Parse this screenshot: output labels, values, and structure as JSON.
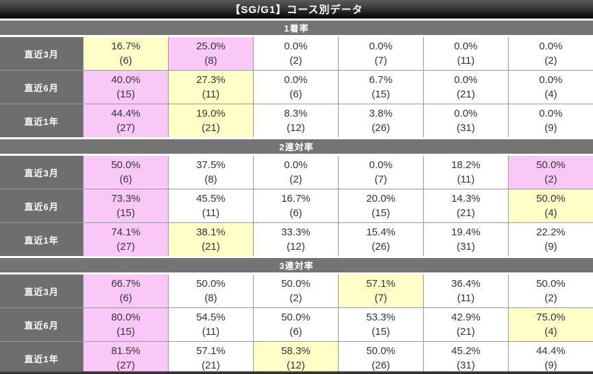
{
  "title": "【SG/G1】コース別データ",
  "colors": {
    "pink": "#f9c8f7",
    "yellow": "#ffffc8",
    "label_bg": "#6e6e6e",
    "section_bg": "#747474",
    "border": "#999999",
    "text": "#333333"
  },
  "sections": [
    {
      "title": "1着率",
      "rows": [
        {
          "label": "直近3月",
          "cells": [
            {
              "pct": "16.7%",
              "n": "(6)",
              "hl": "yellow"
            },
            {
              "pct": "25.0%",
              "n": "(8)",
              "hl": "pink"
            },
            {
              "pct": "0.0%",
              "n": "(2)",
              "hl": "none"
            },
            {
              "pct": "0.0%",
              "n": "(7)",
              "hl": "none"
            },
            {
              "pct": "0.0%",
              "n": "(11)",
              "hl": "none"
            },
            {
              "pct": "0.0%",
              "n": "(2)",
              "hl": "none"
            }
          ]
        },
        {
          "label": "直近6月",
          "cells": [
            {
              "pct": "40.0%",
              "n": "(15)",
              "hl": "pink"
            },
            {
              "pct": "27.3%",
              "n": "(11)",
              "hl": "yellow"
            },
            {
              "pct": "0.0%",
              "n": "(6)",
              "hl": "none"
            },
            {
              "pct": "6.7%",
              "n": "(15)",
              "hl": "none"
            },
            {
              "pct": "0.0%",
              "n": "(21)",
              "hl": "none"
            },
            {
              "pct": "0.0%",
              "n": "(4)",
              "hl": "none"
            }
          ]
        },
        {
          "label": "直近1年",
          "cells": [
            {
              "pct": "44.4%",
              "n": "(27)",
              "hl": "pink"
            },
            {
              "pct": "19.0%",
              "n": "(21)",
              "hl": "yellow"
            },
            {
              "pct": "8.3%",
              "n": "(12)",
              "hl": "none"
            },
            {
              "pct": "3.8%",
              "n": "(26)",
              "hl": "none"
            },
            {
              "pct": "0.0%",
              "n": "(31)",
              "hl": "none"
            },
            {
              "pct": "0.0%",
              "n": "(9)",
              "hl": "none"
            }
          ]
        }
      ]
    },
    {
      "title": "2連対率",
      "rows": [
        {
          "label": "直近3月",
          "cells": [
            {
              "pct": "50.0%",
              "n": "(6)",
              "hl": "pink"
            },
            {
              "pct": "37.5%",
              "n": "(8)",
              "hl": "none"
            },
            {
              "pct": "0.0%",
              "n": "(2)",
              "hl": "none"
            },
            {
              "pct": "0.0%",
              "n": "(7)",
              "hl": "none"
            },
            {
              "pct": "18.2%",
              "n": "(11)",
              "hl": "none"
            },
            {
              "pct": "50.0%",
              "n": "(2)",
              "hl": "pink"
            }
          ]
        },
        {
          "label": "直近6月",
          "cells": [
            {
              "pct": "73.3%",
              "n": "(15)",
              "hl": "pink"
            },
            {
              "pct": "45.5%",
              "n": "(11)",
              "hl": "none"
            },
            {
              "pct": "16.7%",
              "n": "(6)",
              "hl": "none"
            },
            {
              "pct": "20.0%",
              "n": "(15)",
              "hl": "none"
            },
            {
              "pct": "14.3%",
              "n": "(21)",
              "hl": "none"
            },
            {
              "pct": "50.0%",
              "n": "(4)",
              "hl": "yellow"
            }
          ]
        },
        {
          "label": "直近1年",
          "cells": [
            {
              "pct": "74.1%",
              "n": "(27)",
              "hl": "pink"
            },
            {
              "pct": "38.1%",
              "n": "(21)",
              "hl": "yellow"
            },
            {
              "pct": "33.3%",
              "n": "(12)",
              "hl": "none"
            },
            {
              "pct": "15.4%",
              "n": "(26)",
              "hl": "none"
            },
            {
              "pct": "19.4%",
              "n": "(31)",
              "hl": "none"
            },
            {
              "pct": "22.2%",
              "n": "(9)",
              "hl": "none"
            }
          ]
        }
      ]
    },
    {
      "title": "3連対率",
      "rows": [
        {
          "label": "直近3月",
          "cells": [
            {
              "pct": "66.7%",
              "n": "(6)",
              "hl": "pink"
            },
            {
              "pct": "50.0%",
              "n": "(8)",
              "hl": "none"
            },
            {
              "pct": "50.0%",
              "n": "(2)",
              "hl": "none"
            },
            {
              "pct": "57.1%",
              "n": "(7)",
              "hl": "yellow"
            },
            {
              "pct": "36.4%",
              "n": "(11)",
              "hl": "none"
            },
            {
              "pct": "50.0%",
              "n": "(2)",
              "hl": "none"
            }
          ]
        },
        {
          "label": "直近6月",
          "cells": [
            {
              "pct": "80.0%",
              "n": "(15)",
              "hl": "pink"
            },
            {
              "pct": "54.5%",
              "n": "(11)",
              "hl": "none"
            },
            {
              "pct": "50.0%",
              "n": "(6)",
              "hl": "none"
            },
            {
              "pct": "53.3%",
              "n": "(15)",
              "hl": "none"
            },
            {
              "pct": "42.9%",
              "n": "(21)",
              "hl": "none"
            },
            {
              "pct": "75.0%",
              "n": "(4)",
              "hl": "yellow"
            }
          ]
        },
        {
          "label": "直近1年",
          "cells": [
            {
              "pct": "81.5%",
              "n": "(27)",
              "hl": "pink"
            },
            {
              "pct": "57.1%",
              "n": "(21)",
              "hl": "none"
            },
            {
              "pct": "58.3%",
              "n": "(12)",
              "hl": "yellow"
            },
            {
              "pct": "50.0%",
              "n": "(26)",
              "hl": "none"
            },
            {
              "pct": "45.2%",
              "n": "(31)",
              "hl": "none"
            },
            {
              "pct": "44.4%",
              "n": "(9)",
              "hl": "none"
            }
          ]
        }
      ]
    }
  ],
  "chart_data": [
    {
      "type": "table",
      "title": "1着率",
      "row_labels": [
        "直近3月",
        "直近6月",
        "直近1年"
      ],
      "num_columns": 6,
      "rows_pct": [
        [
          16.7,
          25.0,
          0.0,
          0.0,
          0.0,
          0.0
        ],
        [
          40.0,
          27.3,
          0.0,
          6.7,
          0.0,
          0.0
        ],
        [
          44.4,
          19.0,
          8.3,
          3.8,
          0.0,
          0.0
        ]
      ],
      "rows_n": [
        [
          6,
          8,
          2,
          7,
          11,
          2
        ],
        [
          15,
          11,
          6,
          15,
          21,
          4
        ],
        [
          27,
          21,
          12,
          26,
          31,
          9
        ]
      ]
    },
    {
      "type": "table",
      "title": "2連対率",
      "row_labels": [
        "直近3月",
        "直近6月",
        "直近1年"
      ],
      "num_columns": 6,
      "rows_pct": [
        [
          50.0,
          37.5,
          0.0,
          0.0,
          18.2,
          50.0
        ],
        [
          73.3,
          45.5,
          16.7,
          20.0,
          14.3,
          50.0
        ],
        [
          74.1,
          38.1,
          33.3,
          15.4,
          19.4,
          22.2
        ]
      ],
      "rows_n": [
        [
          6,
          8,
          2,
          7,
          11,
          2
        ],
        [
          15,
          11,
          6,
          15,
          21,
          4
        ],
        [
          27,
          21,
          12,
          26,
          31,
          9
        ]
      ]
    },
    {
      "type": "table",
      "title": "3連対率",
      "row_labels": [
        "直近3月",
        "直近6月",
        "直近1年"
      ],
      "num_columns": 6,
      "rows_pct": [
        [
          66.7,
          50.0,
          50.0,
          57.1,
          36.4,
          50.0
        ],
        [
          80.0,
          54.5,
          50.0,
          53.3,
          42.9,
          75.0
        ],
        [
          81.5,
          57.1,
          58.3,
          50.0,
          45.2,
          44.4
        ]
      ],
      "rows_n": [
        [
          6,
          8,
          2,
          7,
          11,
          2
        ],
        [
          15,
          11,
          6,
          15,
          21,
          4
        ],
        [
          27,
          21,
          12,
          26,
          31,
          9
        ]
      ]
    }
  ]
}
